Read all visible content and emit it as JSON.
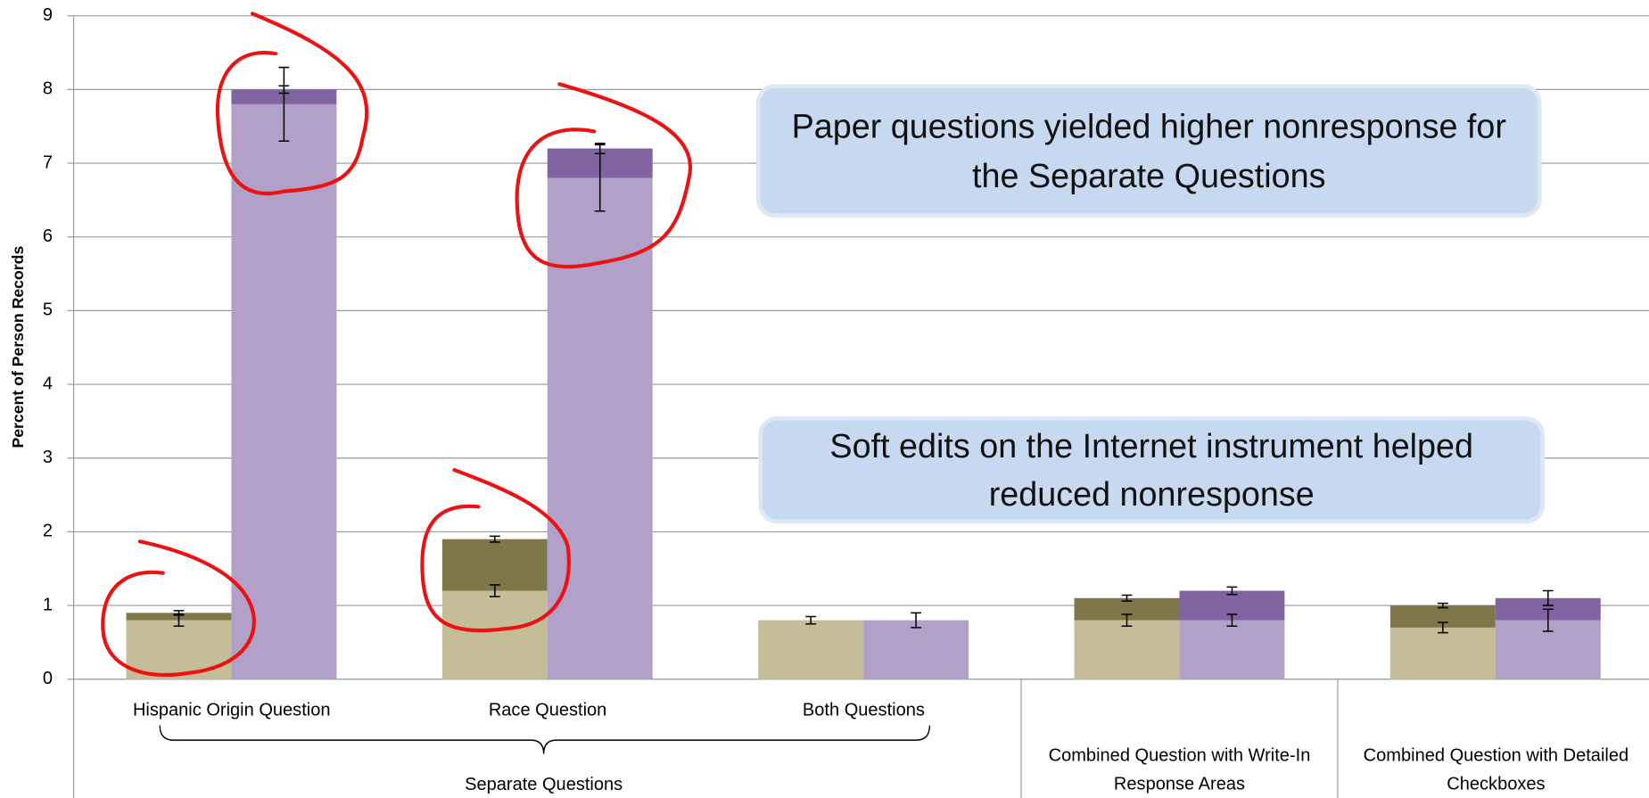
{
  "chart_data": {
    "type": "bar",
    "stacked": true,
    "y_label": "Percent of Person Records",
    "ylim": [
      0,
      9
    ],
    "yticks": [
      0,
      1,
      2,
      3,
      4,
      5,
      6,
      7,
      8,
      9
    ],
    "grid": true,
    "categories": [
      "Hispanic Origin Question",
      "Race Question",
      "Both Questions",
      null,
      null
    ],
    "group_labels": [
      "Separate Questions",
      "Combined Question with Write-In Response Areas",
      "Combined Question with Detailed Checkboxes"
    ],
    "series": [
      {
        "color": "#c4bd97",
        "values": [
          0.8,
          1.2,
          0.8,
          0.8,
          0.7
        ],
        "errors": [
          0.08,
          0.08,
          0.05,
          0.08,
          0.07
        ]
      },
      {
        "color": "#7f7649",
        "values": [
          0.1,
          0.7,
          0,
          0.3,
          0.3
        ],
        "errors": [
          0.03,
          0.04,
          null,
          0.04,
          0.03
        ]
      },
      {
        "color": "#b1a0c7",
        "values": [
          7.8,
          6.8,
          0.8,
          0.8,
          0.8
        ],
        "errors": [
          0.5,
          0.45,
          0.1,
          0.08,
          0.15
        ]
      },
      {
        "color": "#8064a2",
        "values": [
          0.2,
          0.4,
          0,
          0.4,
          0.3
        ],
        "errors": [
          0.05,
          0.07,
          null,
          0.05,
          0.1
        ]
      }
    ],
    "annotations": [
      "Paper questions yielded higher nonresponse for the Separate Questions",
      "Soft edits on the Internet instrument helped reduced nonresponse"
    ]
  }
}
